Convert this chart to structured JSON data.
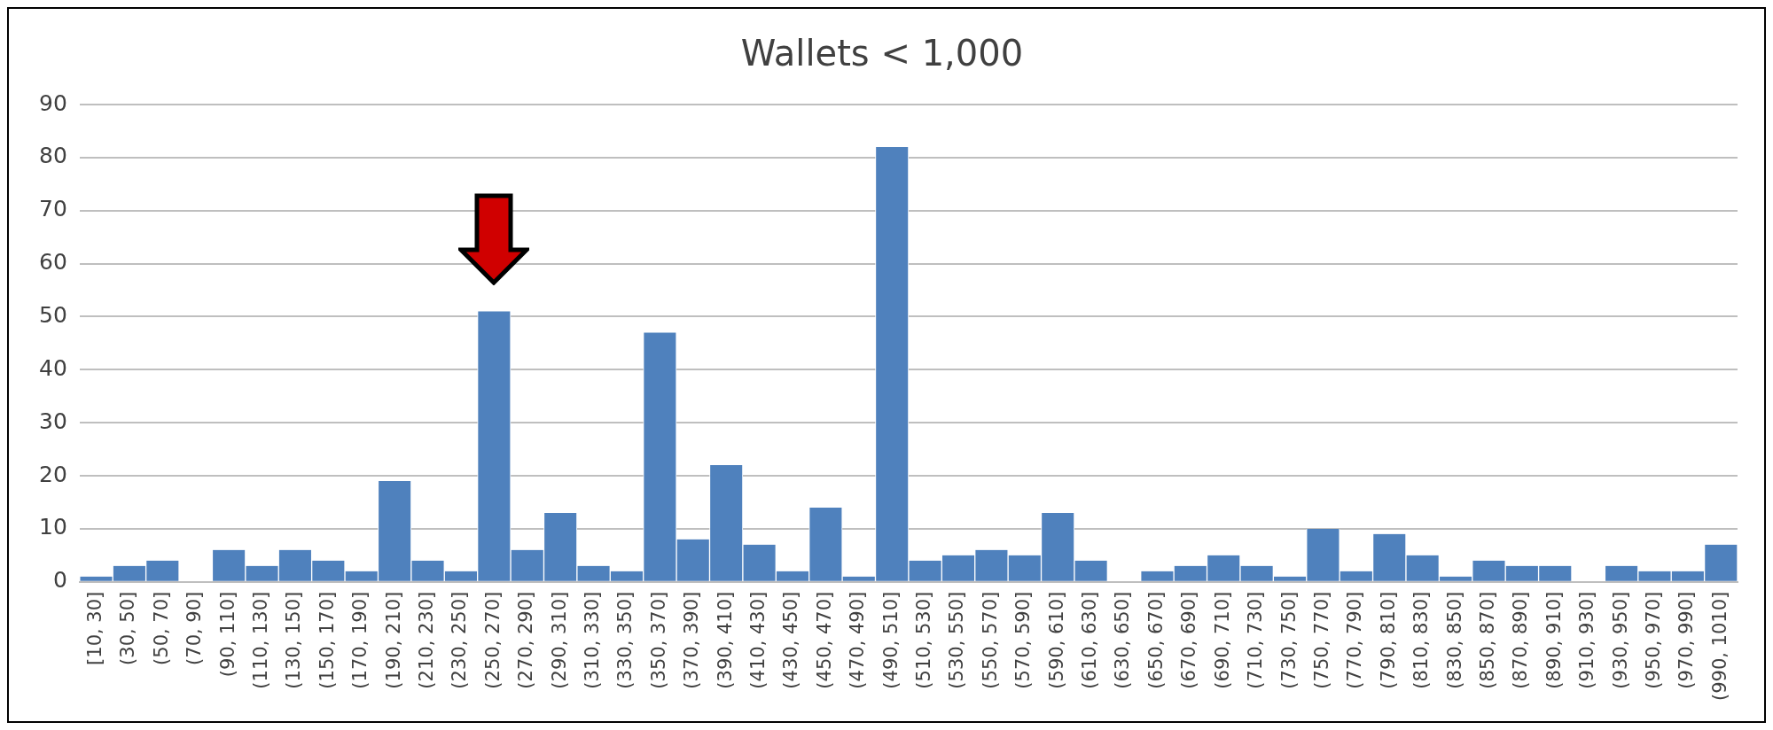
{
  "chart_data": {
    "type": "bar",
    "title": "Wallets < 1,000",
    "categories": [
      "[10, 30]",
      "(30, 50]",
      "(50, 70]",
      "(70, 90]",
      "(90, 110]",
      "(110, 130]",
      "(130, 150]",
      "(150, 170]",
      "(170, 190]",
      "(190, 210]",
      "(210, 230]",
      "(230, 250]",
      "(250, 270]",
      "(270, 290]",
      "(290, 310]",
      "(310, 330]",
      "(330, 350]",
      "(350, 370]",
      "(370, 390]",
      "(390, 410]",
      "(410, 430]",
      "(430, 450]",
      "(450, 470]",
      "(470, 490]",
      "(490, 510]",
      "(510, 530]",
      "(530, 550]",
      "(550, 570]",
      "(570, 590]",
      "(590, 610]",
      "(610, 630]",
      "(630, 650]",
      "(650, 670]",
      "(670, 690]",
      "(690, 710]",
      "(710, 730]",
      "(730, 750]",
      "(750, 770]",
      "(770, 790]",
      "(790, 810]",
      "(810, 830]",
      "(830, 850]",
      "(850, 870]",
      "(870, 890]",
      "(890, 910]",
      "(910, 930]",
      "(930, 950]",
      "(950, 970]",
      "(970, 990]",
      "(990, 1010]"
    ],
    "values": [
      1,
      3,
      4,
      0,
      6,
      3,
      6,
      4,
      2,
      19,
      4,
      2,
      51,
      6,
      13,
      3,
      2,
      47,
      8,
      22,
      7,
      2,
      14,
      1,
      82,
      4,
      5,
      6,
      5,
      13,
      4,
      0,
      2,
      3,
      5,
      3,
      1,
      10,
      2,
      9,
      5,
      1,
      4,
      3,
      3,
      0,
      3,
      2,
      2,
      7
    ],
    "color": "#4f81bd",
    "ylim": [
      0,
      90
    ],
    "yticks": [
      0,
      10,
      20,
      30,
      40,
      50,
      60,
      70,
      80,
      90
    ],
    "grid": "y",
    "legend": false
  }
}
